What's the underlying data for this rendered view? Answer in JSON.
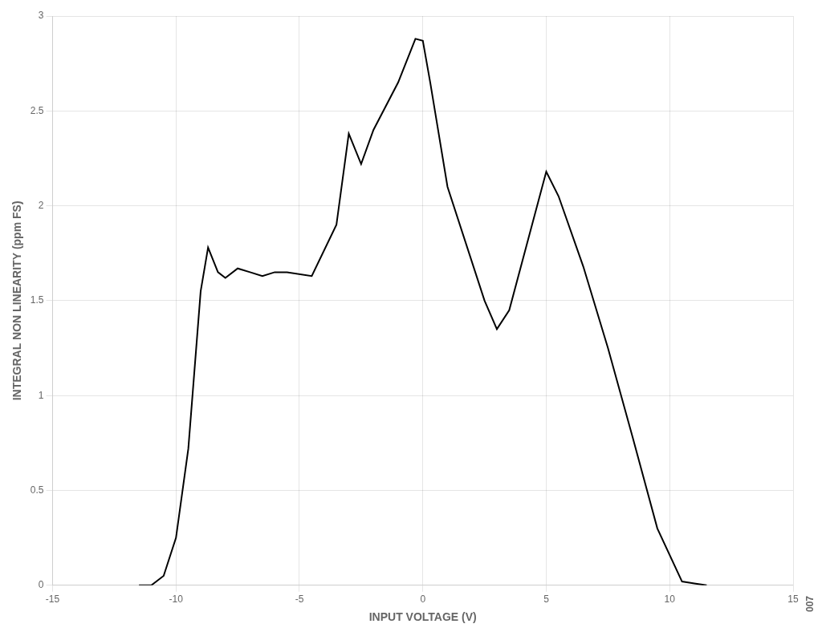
{
  "chart_data": {
    "type": "line",
    "x": [
      -11.5,
      -11.0,
      -10.5,
      -10.0,
      -9.5,
      -9.0,
      -8.7,
      -8.3,
      -8.0,
      -7.5,
      -7.0,
      -6.5,
      -6.0,
      -5.5,
      -4.5,
      -3.5,
      -3.0,
      -2.5,
      -2.0,
      -1.0,
      -0.3,
      0.0,
      0.3,
      1.0,
      2.5,
      3.0,
      3.5,
      5.0,
      5.5,
      6.5,
      7.5,
      8.5,
      9.5,
      10.5,
      11.0,
      11.5
    ],
    "values": [
      0.0,
      0.0,
      0.05,
      0.25,
      0.72,
      1.55,
      1.78,
      1.65,
      1.62,
      1.67,
      1.65,
      1.63,
      1.65,
      1.65,
      1.63,
      1.9,
      2.38,
      2.22,
      2.4,
      2.65,
      2.88,
      2.87,
      2.65,
      2.1,
      1.5,
      1.35,
      1.45,
      2.18,
      2.05,
      1.68,
      1.25,
      0.78,
      0.3,
      0.02,
      0.01,
      0.0
    ],
    "color": "#000000",
    "xlabel": "INPUT VOLTAGE (V)",
    "ylabel": "INTEGRAL NON LINEARITY (ppm FS)",
    "annotation": "007",
    "xlim": [
      -15,
      15
    ],
    "ylim": [
      0,
      3.0
    ],
    "xticks": [
      -15,
      -10,
      -5,
      0,
      5,
      10,
      15
    ],
    "yticks": [
      0,
      0.5,
      1.0,
      1.5,
      2.0,
      2.5,
      3.0
    ],
    "grid": true
  }
}
